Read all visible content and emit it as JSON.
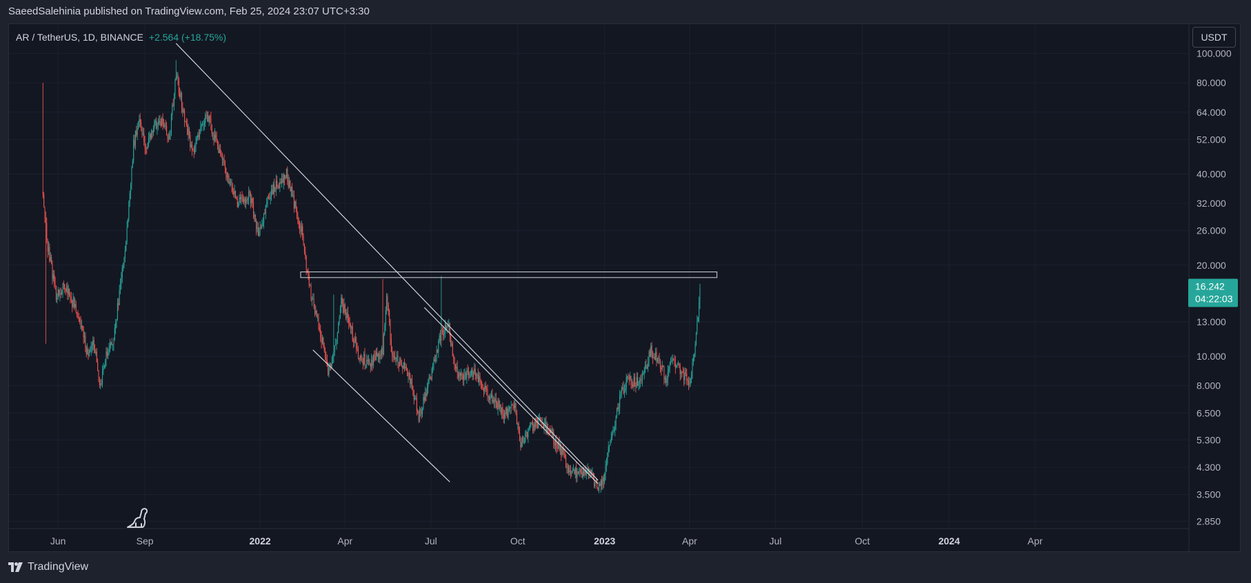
{
  "header": {
    "publish_text": "SaeedSalehinia published on TradingView.com, Feb 25, 2024 23:07 UTC+3:30"
  },
  "symbol": {
    "name": "AR / TetherUS, 1D, BINANCE",
    "change": "+2.564 (+18.75%)"
  },
  "currency_label": "USDT",
  "price_badge": {
    "price": "16.242",
    "countdown": "04:22:03",
    "value": 16.242,
    "color": "#26a69a"
  },
  "footer": {
    "brand": "TradingView"
  },
  "colors": {
    "up": "#26a69a",
    "down": "#ef5350",
    "background": "#131722",
    "panel": "#1e222d",
    "drawing": "#d1d4dc"
  },
  "chart_data": {
    "type": "candlestick",
    "scale": "log",
    "ylim": [
      2.7,
      125
    ],
    "xlim": [
      -210,
      1040
    ],
    "y_ticks": [
      {
        "label": "100.000",
        "value": 100
      },
      {
        "label": "80.000",
        "value": 80
      },
      {
        "label": "64.000",
        "value": 64
      },
      {
        "label": "52.000",
        "value": 52
      },
      {
        "label": "40.000",
        "value": 40
      },
      {
        "label": "32.000",
        "value": 32
      },
      {
        "label": "26.000",
        "value": 26
      },
      {
        "label": "20.000",
        "value": 20
      },
      {
        "label": "13.000",
        "value": 13
      },
      {
        "label": "10.000",
        "value": 10
      },
      {
        "label": "8.000",
        "value": 8
      },
      {
        "label": "6.500",
        "value": 6.5
      },
      {
        "label": "5.300",
        "value": 5.3
      },
      {
        "label": "4.300",
        "value": 4.3
      },
      {
        "label": "3.500",
        "value": 3.5
      },
      {
        "label": "2.850",
        "value": 2.85
      }
    ],
    "x_ticks": [
      {
        "label": "Jun",
        "day": -158,
        "bold": false
      },
      {
        "label": "Sep",
        "day": -66,
        "bold": false
      },
      {
        "label": "2022",
        "day": 56,
        "bold": true
      },
      {
        "label": "Apr",
        "day": 146,
        "bold": false
      },
      {
        "label": "Jul",
        "day": 237,
        "bold": false
      },
      {
        "label": "Oct",
        "day": 329,
        "bold": false
      },
      {
        "label": "2023",
        "day": 421,
        "bold": true
      },
      {
        "label": "Apr",
        "day": 511,
        "bold": false
      },
      {
        "label": "Jul",
        "day": 602,
        "bold": false
      },
      {
        "label": "Oct",
        "day": 694,
        "bold": false
      },
      {
        "label": "2024",
        "day": 786,
        "bold": true
      },
      {
        "label": "Apr",
        "day": 877,
        "bold": false
      }
    ],
    "price_path": [
      {
        "day": -174,
        "price": 35
      },
      {
        "day": -170,
        "price": 24
      },
      {
        "day": -160,
        "price": 16
      },
      {
        "day": -150,
        "price": 17
      },
      {
        "day": -138,
        "price": 14
      },
      {
        "day": -126,
        "price": 10
      },
      {
        "day": -120,
        "price": 11
      },
      {
        "day": -113,
        "price": 7.8
      },
      {
        "day": -108,
        "price": 10
      },
      {
        "day": -100,
        "price": 11
      },
      {
        "day": -93,
        "price": 16
      },
      {
        "day": -85,
        "price": 26
      },
      {
        "day": -78,
        "price": 50
      },
      {
        "day": -72,
        "price": 62
      },
      {
        "day": -65,
        "price": 48
      },
      {
        "day": -58,
        "price": 57
      },
      {
        "day": -50,
        "price": 60
      },
      {
        "day": -40,
        "price": 53
      },
      {
        "day": -33,
        "price": 85
      },
      {
        "day": -25,
        "price": 64
      },
      {
        "day": -15,
        "price": 46
      },
      {
        "day": -8,
        "price": 56
      },
      {
        "day": 0,
        "price": 64
      },
      {
        "day": 8,
        "price": 52
      },
      {
        "day": 20,
        "price": 41
      },
      {
        "day": 32,
        "price": 32
      },
      {
        "day": 45,
        "price": 34
      },
      {
        "day": 55,
        "price": 25
      },
      {
        "day": 65,
        "price": 34
      },
      {
        "day": 75,
        "price": 37
      },
      {
        "day": 84,
        "price": 40
      },
      {
        "day": 92,
        "price": 32
      },
      {
        "day": 100,
        "price": 26
      },
      {
        "day": 108,
        "price": 17
      },
      {
        "day": 114,
        "price": 14
      },
      {
        "day": 120,
        "price": 12
      },
      {
        "day": 128,
        "price": 9
      },
      {
        "day": 134,
        "price": 10
      },
      {
        "day": 142,
        "price": 15
      },
      {
        "day": 150,
        "price": 13
      },
      {
        "day": 160,
        "price": 10
      },
      {
        "day": 172,
        "price": 9.5
      },
      {
        "day": 186,
        "price": 10.3
      },
      {
        "day": 190,
        "price": 16
      },
      {
        "day": 196,
        "price": 10
      },
      {
        "day": 206,
        "price": 9.4
      },
      {
        "day": 216,
        "price": 8.3
      },
      {
        "day": 224,
        "price": 6.3
      },
      {
        "day": 230,
        "price": 7.2
      },
      {
        "day": 240,
        "price": 9.5
      },
      {
        "day": 248,
        "price": 12
      },
      {
        "day": 256,
        "price": 12.5
      },
      {
        "day": 262,
        "price": 9
      },
      {
        "day": 272,
        "price": 8.6
      },
      {
        "day": 284,
        "price": 9
      },
      {
        "day": 292,
        "price": 8
      },
      {
        "day": 302,
        "price": 7.2
      },
      {
        "day": 314,
        "price": 6.5
      },
      {
        "day": 326,
        "price": 6.7
      },
      {
        "day": 332,
        "price": 5.2
      },
      {
        "day": 344,
        "price": 5.9
      },
      {
        "day": 352,
        "price": 6.1
      },
      {
        "day": 362,
        "price": 5.6
      },
      {
        "day": 372,
        "price": 5.1
      },
      {
        "day": 382,
        "price": 4.3
      },
      {
        "day": 392,
        "price": 4.1
      },
      {
        "day": 402,
        "price": 4.2
      },
      {
        "day": 408,
        "price": 3.95
      },
      {
        "day": 414,
        "price": 3.75
      },
      {
        "day": 420,
        "price": 4.0
      },
      {
        "day": 428,
        "price": 5.4
      },
      {
        "day": 438,
        "price": 7.5
      },
      {
        "day": 446,
        "price": 8.5
      },
      {
        "day": 454,
        "price": 8.2
      },
      {
        "day": 462,
        "price": 8.6
      },
      {
        "day": 470,
        "price": 10.5
      },
      {
        "day": 480,
        "price": 9.3
      },
      {
        "day": 486,
        "price": 8.4
      },
      {
        "day": 494,
        "price": 9.8
      },
      {
        "day": 504,
        "price": 8.6
      },
      {
        "day": 512,
        "price": 8.2
      },
      {
        "day": 518,
        "price": 12
      },
      {
        "day": 522,
        "price": 16.2
      }
    ],
    "drawings": [
      {
        "name": "long-downtrend-line",
        "type": "trendline",
        "points": [
          {
            "day": -33,
            "price": 108
          },
          {
            "day": 414,
            "price": 3.9
          }
        ]
      },
      {
        "name": "channel-upper-line",
        "type": "trendline",
        "points": [
          {
            "day": 230,
            "price": 14.5
          },
          {
            "day": 414,
            "price": 3.8
          }
        ]
      },
      {
        "name": "channel-lower-line",
        "type": "trendline",
        "points": [
          {
            "day": 112,
            "price": 10.5
          },
          {
            "day": 257,
            "price": 3.85
          }
        ]
      },
      {
        "name": "resistance-zone",
        "type": "rectangle",
        "from_day": 99,
        "to_day": 540,
        "price_top": 19.0,
        "price_bottom": 18.2
      }
    ]
  }
}
